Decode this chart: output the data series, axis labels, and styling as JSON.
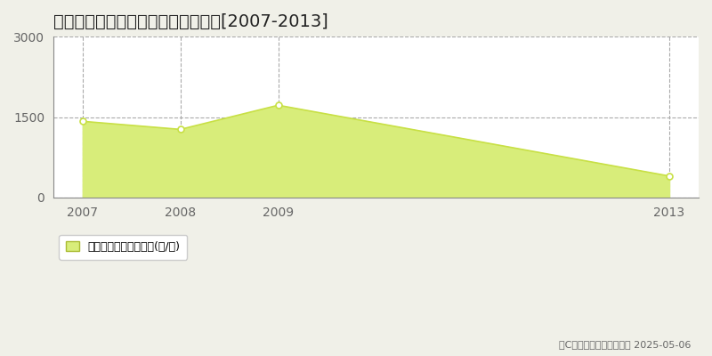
{
  "title": "香取郡多古町東松崎　林地価格推移[2007-2013]",
  "years": [
    2007,
    2008,
    2009,
    2013
  ],
  "values": [
    1420,
    1270,
    1720,
    400
  ],
  "line_color": "#c8e045",
  "fill_color": "#d8ed7a",
  "fill_alpha": 1.0,
  "marker_facecolor": "white",
  "background_color": "#f0f0e8",
  "plot_bg_color": "#ffffff",
  "ylim": [
    0,
    3000
  ],
  "yticks": [
    0,
    1500,
    3000
  ],
  "grid_color": "#aaaaaa",
  "grid_style": "--",
  "title_fontsize": 14,
  "tick_fontsize": 10,
  "legend_label": "林地価格　平均嵪単価(円/嵪)",
  "copyright_text": "（C）土地価格ドットコム 2025-05-06",
  "axis_color": "#888888",
  "tick_color": "#666666"
}
